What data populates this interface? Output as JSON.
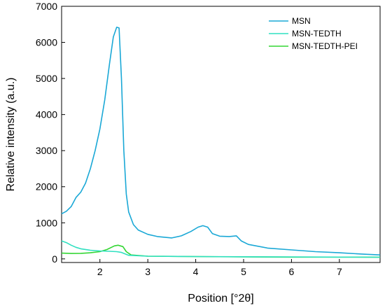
{
  "chart_data": {
    "type": "line",
    "xlabel": "Position [°2θ]",
    "ylabel": "Relative intensity (a.u.)",
    "xlim": [
      1.2,
      7.85
    ],
    "ylim": [
      -100,
      7000
    ],
    "x_ticks": [
      2,
      3,
      4,
      5,
      6,
      7
    ],
    "y_ticks": [
      0,
      1000,
      2000,
      3000,
      4000,
      5000,
      6000,
      7000
    ],
    "grid": false,
    "legend_position": "top-right",
    "series": [
      {
        "name": "MSN",
        "color": "#1aa8d6",
        "points": [
          [
            1.2,
            1250
          ],
          [
            1.3,
            1320
          ],
          [
            1.4,
            1450
          ],
          [
            1.5,
            1700
          ],
          [
            1.6,
            1850
          ],
          [
            1.7,
            2100
          ],
          [
            1.8,
            2500
          ],
          [
            1.9,
            3000
          ],
          [
            2.0,
            3600
          ],
          [
            2.1,
            4400
          ],
          [
            2.2,
            5400
          ],
          [
            2.28,
            6150
          ],
          [
            2.35,
            6420
          ],
          [
            2.4,
            6400
          ],
          [
            2.45,
            5000
          ],
          [
            2.5,
            3000
          ],
          [
            2.55,
            1800
          ],
          [
            2.6,
            1300
          ],
          [
            2.7,
            950
          ],
          [
            2.8,
            800
          ],
          [
            3.0,
            680
          ],
          [
            3.2,
            620
          ],
          [
            3.5,
            580
          ],
          [
            3.7,
            640
          ],
          [
            3.9,
            760
          ],
          [
            4.05,
            880
          ],
          [
            4.15,
            920
          ],
          [
            4.25,
            880
          ],
          [
            4.35,
            700
          ],
          [
            4.5,
            630
          ],
          [
            4.7,
            620
          ],
          [
            4.85,
            640
          ],
          [
            4.95,
            500
          ],
          [
            5.1,
            400
          ],
          [
            5.5,
            300
          ],
          [
            6.0,
            250
          ],
          [
            6.5,
            200
          ],
          [
            7.0,
            170
          ],
          [
            7.5,
            130
          ],
          [
            7.85,
            110
          ]
        ]
      },
      {
        "name": "MSN-TEDTH",
        "color": "#2fe0c0",
        "points": [
          [
            1.2,
            500
          ],
          [
            1.3,
            450
          ],
          [
            1.4,
            380
          ],
          [
            1.5,
            320
          ],
          [
            1.6,
            280
          ],
          [
            1.8,
            240
          ],
          [
            2.0,
            220
          ],
          [
            2.2,
            210
          ],
          [
            2.35,
            200
          ],
          [
            2.45,
            180
          ],
          [
            2.6,
            100
          ],
          [
            3.0,
            75
          ],
          [
            4.0,
            65
          ],
          [
            5.0,
            60
          ],
          [
            6.0,
            55
          ],
          [
            7.0,
            50
          ],
          [
            7.85,
            45
          ]
        ]
      },
      {
        "name": "MSN-TEDTH-PEI",
        "color": "#33d633",
        "points": [
          [
            1.2,
            160
          ],
          [
            1.4,
            150
          ],
          [
            1.6,
            155
          ],
          [
            1.8,
            170
          ],
          [
            2.0,
            200
          ],
          [
            2.15,
            260
          ],
          [
            2.3,
            360
          ],
          [
            2.38,
            380
          ],
          [
            2.48,
            340
          ],
          [
            2.55,
            200
          ],
          [
            2.65,
            110
          ],
          [
            3.0,
            75
          ],
          [
            4.0,
            65
          ],
          [
            5.0,
            55
          ],
          [
            6.0,
            50
          ],
          [
            7.0,
            50
          ],
          [
            7.85,
            48
          ]
        ]
      }
    ]
  }
}
